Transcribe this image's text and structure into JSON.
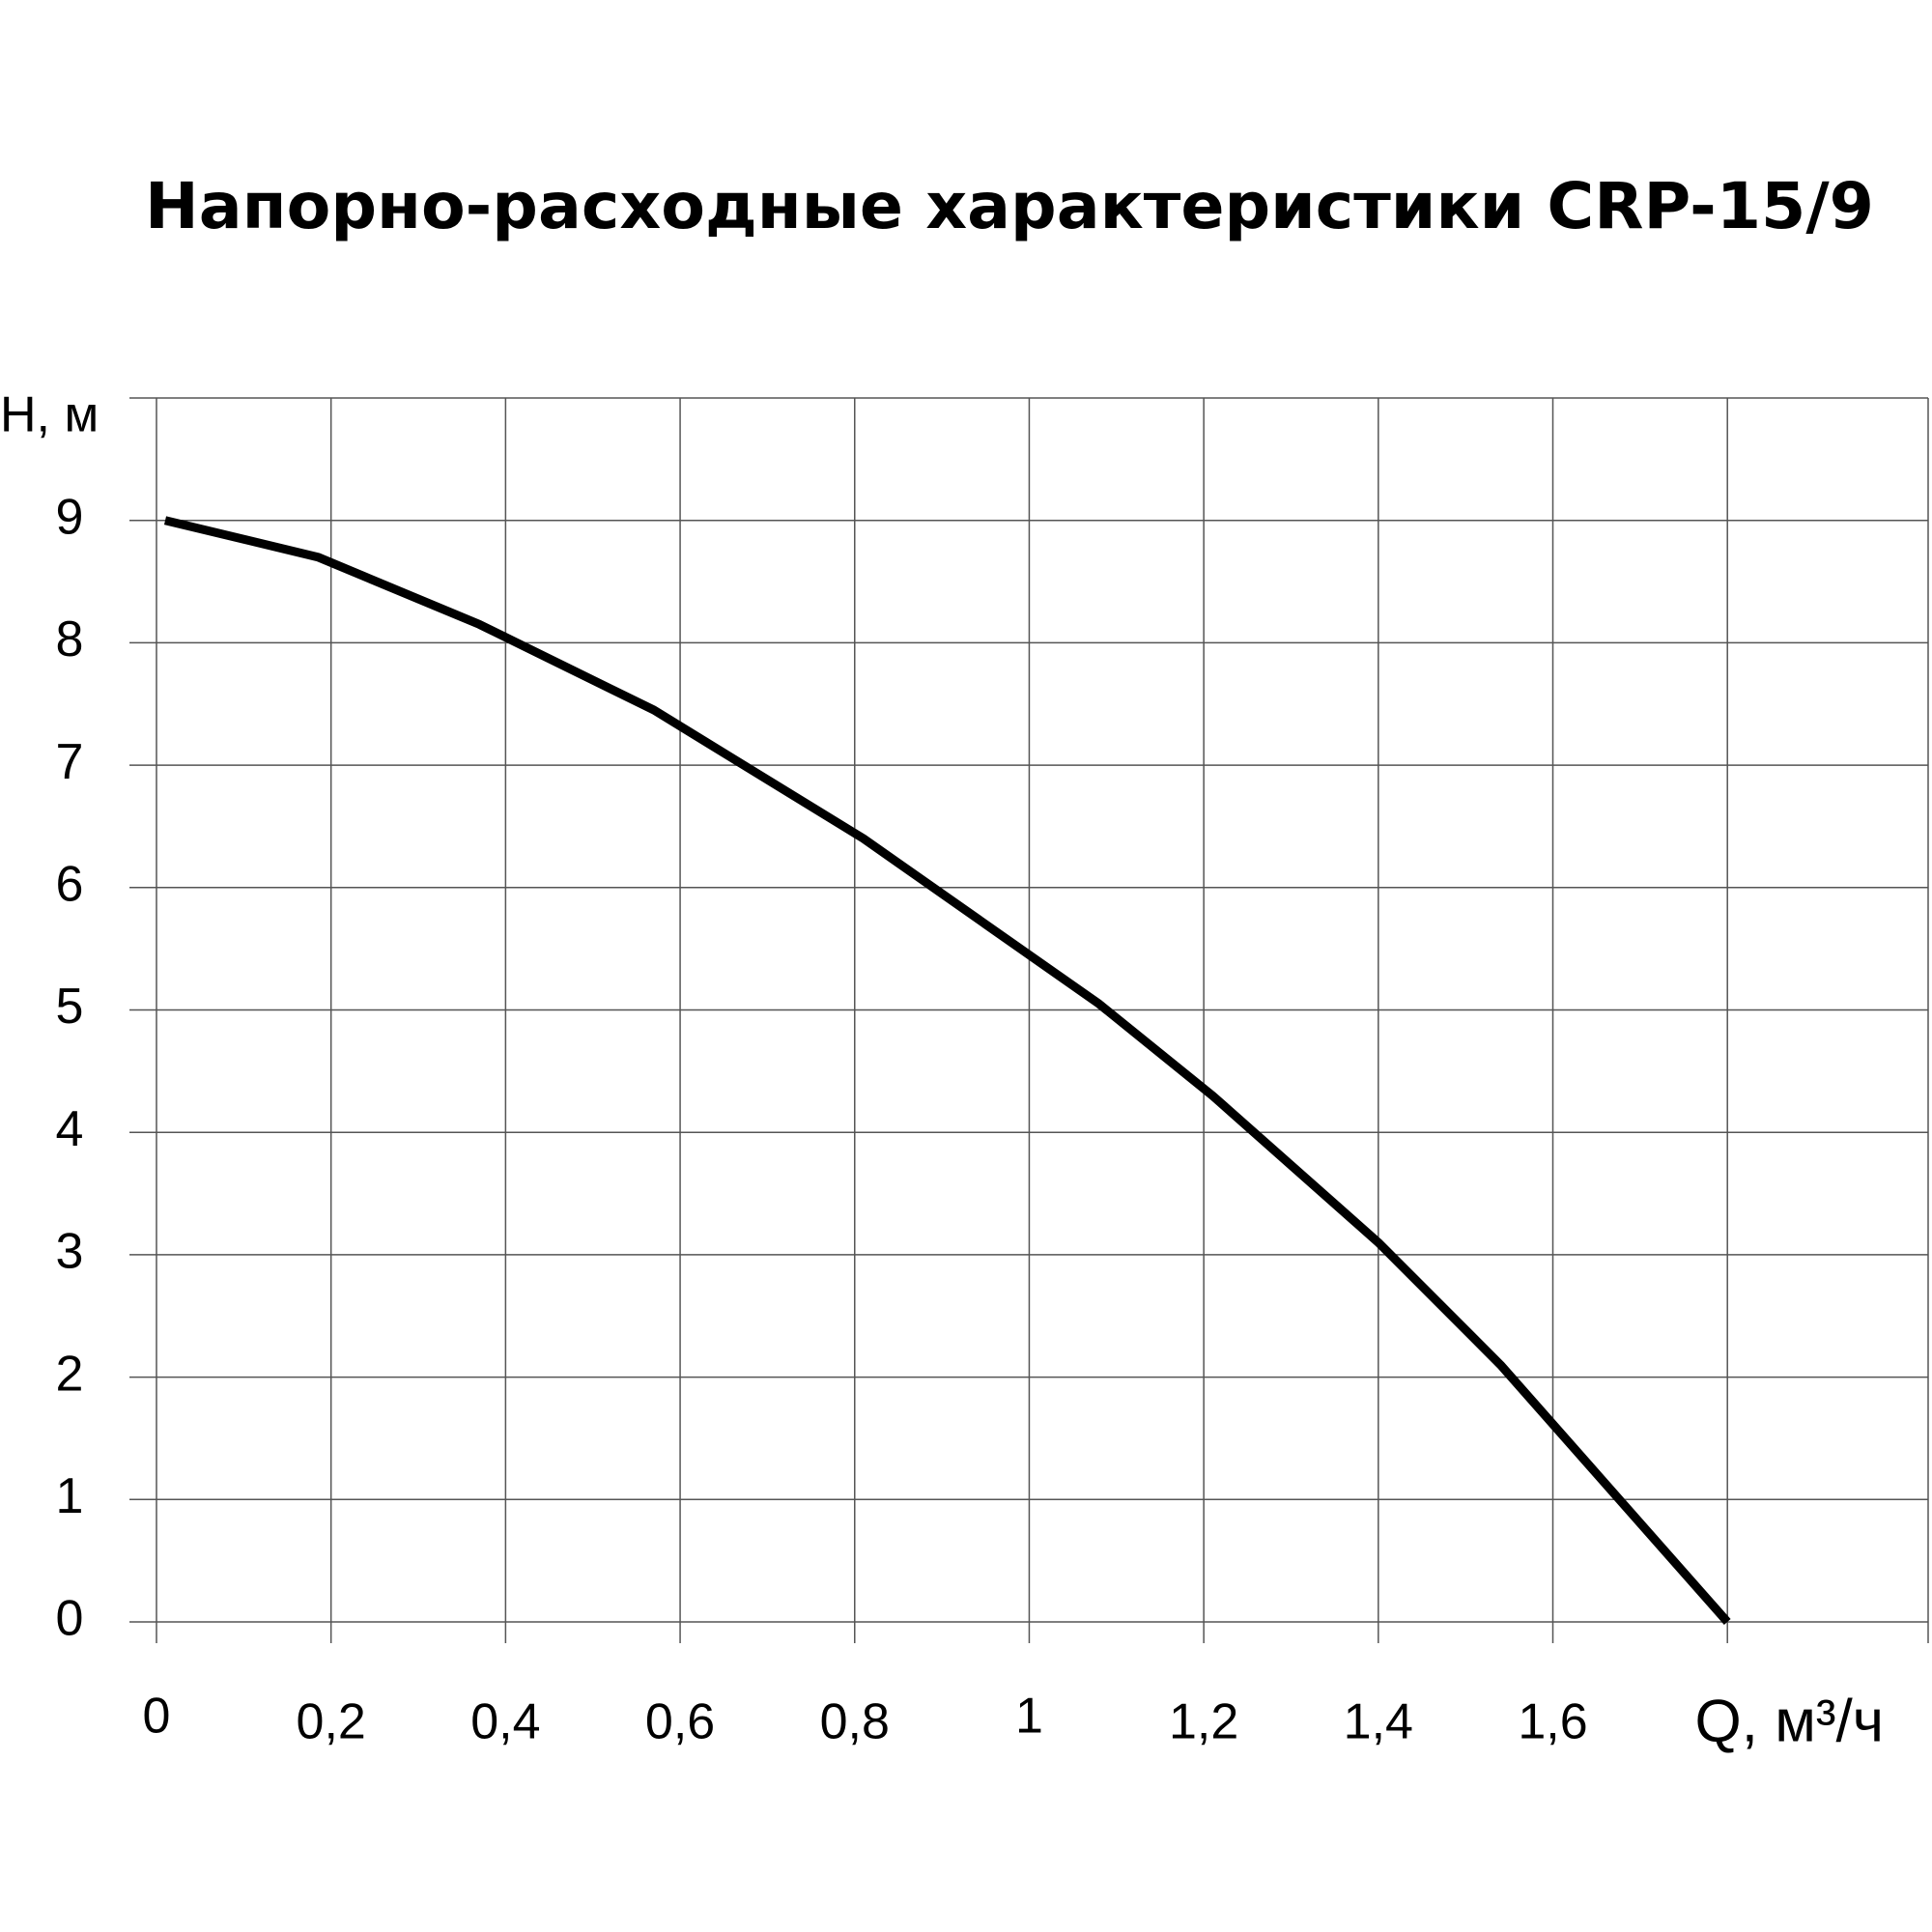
{
  "chart_data": {
    "type": "line",
    "title": "Напорно-расходные характеристики CRP-15/9",
    "xlabel": "Q, м³/ч",
    "ylabel": "H, м",
    "x": [
      0.01,
      0.185,
      0.37,
      0.57,
      0.81,
      1.08,
      1.21,
      1.4,
      1.54,
      1.8
    ],
    "series": [
      {
        "color": "#000000",
        "values": [
          9.0,
          8.7,
          8.15,
          7.45,
          6.4,
          5.05,
          4.3,
          3.1,
          2.1,
          0
        ]
      }
    ],
    "xlim": [
      0,
      2.03
    ],
    "ylim": [
      0,
      10
    ],
    "xticks": [
      0,
      {
        "value": 0.2,
        "label": "0,2"
      },
      {
        "value": 0.4,
        "label": "0,4"
      },
      {
        "value": 0.6,
        "label": "0,6"
      },
      {
        "value": 0.8,
        "label": "0,8"
      },
      1,
      {
        "value": 1.2,
        "label": "1,2"
      },
      {
        "value": 1.4,
        "label": "1,4"
      },
      {
        "value": 1.6,
        "label": "1,6"
      },
      {
        "value": 1.8,
        "label": null
      },
      {
        "value": 2.03,
        "label": null
      }
    ],
    "yticks": [
      0,
      1,
      2,
      3,
      4,
      5,
      6,
      7,
      8,
      9,
      {
        "value": 10,
        "label": null
      }
    ],
    "grid": true
  }
}
